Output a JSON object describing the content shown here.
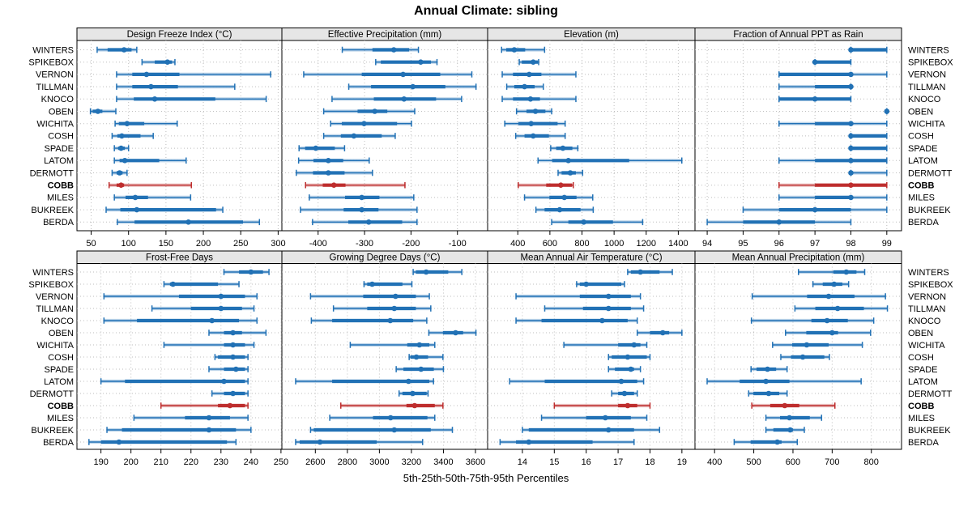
{
  "title": "Annual Climate: sibling",
  "caption": "5th-25th-50th-75th-95th Percentiles",
  "percentile_labels": [
    "5th",
    "25th",
    "50th",
    "75th",
    "95th"
  ],
  "stations": [
    "WINTERS",
    "SPIKEBOX",
    "VERNON",
    "TILLMAN",
    "KNOCO",
    "OBEN",
    "WICHITA",
    "COSH",
    "SPADE",
    "LATOM",
    "DERMOTT",
    "COBB",
    "MILES",
    "BUKREEK",
    "BERDA"
  ],
  "highlighted_station": "COBB",
  "colors": {
    "series": "#2171B5",
    "highlight": "#BE2D2D",
    "strip_bg": "#E6E6E6",
    "grid": "#BEBEBE",
    "border": "#000000"
  },
  "chart_data": [
    {
      "type": "percentile-range",
      "block": "top",
      "col": 0,
      "title": "Design Freeze Index (°C)",
      "xlim": [
        31,
        305
      ],
      "ticks": [
        50,
        100,
        150,
        200,
        250,
        300
      ],
      "values": [
        [
          58,
          72,
          94,
          104,
          111
        ],
        [
          118,
          135,
          152,
          158,
          162
        ],
        [
          84,
          105,
          124,
          168,
          290
        ],
        [
          84,
          105,
          130,
          166,
          242
        ],
        [
          84,
          107,
          135,
          216,
          284
        ],
        [
          49,
          52,
          59,
          65,
          83
        ],
        [
          82,
          87,
          98,
          121,
          165
        ],
        [
          78,
          85,
          91,
          116,
          133
        ],
        [
          81,
          86,
          90,
          95,
          100
        ],
        [
          81,
          88,
          95,
          141,
          177
        ],
        [
          78,
          84,
          88,
          92,
          98
        ],
        [
          74,
          84,
          90,
          94,
          184
        ],
        [
          81,
          96,
          109,
          126,
          183
        ],
        [
          70,
          89,
          111,
          217,
          226
        ],
        [
          85,
          108,
          180,
          253,
          275
        ]
      ]
    },
    {
      "type": "percentile-range",
      "block": "top",
      "col": 1,
      "title": "Effective Precipitation (mm)",
      "xlim": [
        -478,
        -35
      ],
      "ticks": [
        -400,
        -300,
        -200,
        -100
      ],
      "values": [
        [
          -348,
          -283,
          -237,
          -204,
          -184
        ],
        [
          -276,
          -265,
          -179,
          -157,
          -144
        ],
        [
          -431,
          -306,
          -217,
          -137,
          -69
        ],
        [
          -334,
          -286,
          -196,
          -126,
          -60
        ],
        [
          -370,
          -280,
          -215,
          -146,
          -91
        ],
        [
          -388,
          -315,
          -278,
          -251,
          -192
        ],
        [
          -373,
          -349,
          -301,
          -230,
          -199
        ],
        [
          -388,
          -351,
          -323,
          -263,
          -234
        ],
        [
          -441,
          -428,
          -405,
          -364,
          -343
        ],
        [
          -442,
          -410,
          -378,
          -346,
          -290
        ],
        [
          -447,
          -411,
          -378,
          -343,
          -283
        ],
        [
          -427,
          -390,
          -366,
          -341,
          -213
        ],
        [
          -419,
          -342,
          -306,
          -268,
          -194
        ],
        [
          -438,
          -345,
          -306,
          -270,
          -187
        ],
        [
          -412,
          -335,
          -291,
          -219,
          -187
        ]
      ]
    },
    {
      "type": "percentile-range",
      "block": "top",
      "col": 2,
      "title": "Elevation (m)",
      "xlim": [
        212,
        1504
      ],
      "ticks": [
        400,
        600,
        800,
        1000,
        1200,
        1400
      ],
      "values": [
        [
          299,
          328,
          378,
          446,
          567
        ],
        [
          409,
          425,
          496,
          526,
          530
        ],
        [
          303,
          370,
          471,
          547,
          762
        ],
        [
          331,
          378,
          442,
          505,
          559
        ],
        [
          303,
          370,
          479,
          538,
          762
        ],
        [
          392,
          454,
          510,
          572,
          611
        ],
        [
          319,
          404,
          483,
          648,
          695
        ],
        [
          387,
          442,
          496,
          594,
          695
        ],
        [
          605,
          639,
          681,
          740,
          774
        ],
        [
          526,
          614,
          715,
          1094,
          1422
        ],
        [
          651,
          673,
          727,
          762,
          804
        ],
        [
          403,
          577,
          668,
          738,
          746
        ],
        [
          442,
          597,
          690,
          766,
          867
        ],
        [
          513,
          567,
          661,
          791,
          870
        ],
        [
          611,
          715,
          811,
          993,
          1178
        ]
      ]
    },
    {
      "type": "percentile-range",
      "block": "top",
      "col": 3,
      "title": "Fraction of Annual PPT as Rain",
      "xlim": [
        93.66,
        99.41
      ],
      "ticks": [
        94,
        95,
        96,
        97,
        98,
        99
      ],
      "values": [
        [
          98,
          98,
          98,
          99,
          99
        ],
        [
          97,
          97,
          97,
          98,
          98
        ],
        [
          96,
          96,
          98,
          98,
          99
        ],
        [
          96,
          97,
          98,
          98,
          98
        ],
        [
          96,
          96,
          97,
          98,
          98
        ],
        [
          99,
          99,
          99,
          99,
          99
        ],
        [
          96,
          97,
          98,
          98,
          99
        ],
        [
          98,
          98,
          98,
          99,
          99
        ],
        [
          98,
          98,
          98,
          99,
          99
        ],
        [
          96,
          97,
          98,
          99,
          99
        ],
        [
          98,
          98,
          98,
          98,
          99
        ],
        [
          96,
          97,
          98,
          99,
          99
        ],
        [
          96,
          97,
          98,
          98,
          99
        ],
        [
          95,
          96,
          97,
          98,
          99
        ],
        [
          94,
          95,
          96,
          97,
          98
        ]
      ]
    },
    {
      "type": "percentile-range",
      "block": "bottom",
      "col": 0,
      "title": "Frost-Free Days",
      "xlim": [
        182,
        250.3
      ],
      "ticks": [
        190,
        200,
        210,
        220,
        230,
        240,
        250
      ],
      "values": [
        [
          231,
          236,
          240,
          244,
          246
        ],
        [
          211,
          213,
          214,
          229,
          236
        ],
        [
          191,
          216,
          230,
          238,
          242
        ],
        [
          207,
          220,
          230,
          237,
          241
        ],
        [
          191,
          202,
          227,
          236,
          242
        ],
        [
          226,
          231,
          234,
          237,
          245
        ],
        [
          211,
          231,
          234,
          238,
          241
        ],
        [
          228,
          229,
          234,
          238,
          239
        ],
        [
          226,
          231,
          235,
          238,
          239
        ],
        [
          190,
          198,
          231,
          238,
          239
        ],
        [
          227,
          231,
          234,
          238,
          239
        ],
        [
          210,
          229,
          233,
          238,
          239
        ],
        [
          201,
          218,
          226,
          233,
          239
        ],
        [
          192,
          197,
          226,
          235,
          240
        ],
        [
          186,
          190,
          196,
          232,
          235
        ]
      ]
    },
    {
      "type": "percentile-range",
      "block": "bottom",
      "col": 1,
      "title": "Growing Degree Days (°C)",
      "xlim": [
        2391,
        3676
      ],
      "ticks": [
        2600,
        2800,
        3000,
        3200,
        3400,
        3600
      ],
      "values": [
        [
          3211,
          3228,
          3292,
          3430,
          3515
        ],
        [
          2904,
          2924,
          2955,
          3144,
          3203
        ],
        [
          2570,
          2899,
          3101,
          3228,
          3312
        ],
        [
          2713,
          2924,
          3093,
          3228,
          3321
        ],
        [
          2575,
          2705,
          3068,
          3211,
          3296
        ],
        [
          3309,
          3397,
          3476,
          3523,
          3603
        ],
        [
          2818,
          3174,
          3250,
          3312,
          3346
        ],
        [
          3186,
          3194,
          3231,
          3304,
          3397
        ],
        [
          3105,
          3150,
          3260,
          3340,
          3400
        ],
        [
          2477,
          2705,
          3182,
          3312,
          3338
        ],
        [
          3123,
          3144,
          3208,
          3295,
          3304
        ],
        [
          2759,
          3169,
          3220,
          3346,
          3397
        ],
        [
          2690,
          2960,
          3070,
          3300,
          3346
        ],
        [
          2570,
          2590,
          3093,
          3321,
          3456
        ],
        [
          2477,
          2502,
          2629,
          2983,
          3270
        ]
      ]
    },
    {
      "type": "percentile-range",
      "block": "bottom",
      "col": 2,
      "title": "Mean Annual Air Temperature (°C)",
      "xlim": [
        12.91,
        19.41
      ],
      "ticks": [
        14,
        15,
        16,
        17,
        18,
        19
      ],
      "values": [
        [
          17.3,
          17.4,
          17.7,
          18.3,
          18.7
        ],
        [
          15.7,
          15.8,
          16.0,
          17.1,
          17.2
        ],
        [
          13.8,
          15.8,
          16.7,
          17.4,
          17.7
        ],
        [
          14.7,
          15.9,
          16.7,
          17.4,
          17.8
        ],
        [
          13.8,
          14.6,
          16.5,
          17.3,
          17.6
        ],
        [
          17.6,
          18.0,
          18.4,
          18.6,
          19.0
        ],
        [
          15.3,
          17.0,
          17.5,
          17.7,
          17.9
        ],
        [
          16.7,
          16.8,
          17.3,
          17.9,
          18.0
        ],
        [
          16.7,
          16.9,
          17.4,
          17.5,
          17.7
        ],
        [
          13.6,
          14.7,
          17.1,
          17.6,
          17.8
        ],
        [
          16.8,
          17.0,
          17.2,
          17.5,
          17.6
        ],
        [
          15.0,
          17.0,
          17.3,
          17.6,
          18.0
        ],
        [
          14.6,
          16.0,
          16.6,
          17.4,
          17.9
        ],
        [
          14.0,
          14.2,
          16.7,
          17.5,
          18.3
        ],
        [
          13.3,
          13.8,
          14.2,
          16.2,
          17.5
        ]
      ]
    },
    {
      "type": "percentile-range",
      "block": "bottom",
      "col": 3,
      "title": "Mean Annual Precipitation (mm)",
      "xlim": [
        350,
        877
      ],
      "ticks": [
        400,
        500,
        600,
        700,
        800
      ],
      "values": [
        [
          614,
          703,
          736,
          762,
          783
        ],
        [
          651,
          676,
          705,
          726,
          742
        ],
        [
          496,
          636,
          691,
          757,
          836
        ],
        [
          605,
          657,
          714,
          781,
          841
        ],
        [
          494,
          647,
          687,
          740,
          806
        ],
        [
          581,
          634,
          700,
          715,
          798
        ],
        [
          548,
          598,
          635,
          691,
          777
        ],
        [
          569,
          595,
          625,
          680,
          693
        ],
        [
          493,
          507,
          535,
          557,
          585
        ],
        [
          381,
          464,
          531,
          591,
          774
        ],
        [
          487,
          499,
          538,
          565,
          585
        ],
        [
          495,
          542,
          579,
          616,
          707
        ],
        [
          531,
          567,
          591,
          643,
          673
        ],
        [
          531,
          550,
          593,
          600,
          629
        ],
        [
          450,
          492,
          560,
          571,
          611
        ]
      ]
    }
  ]
}
